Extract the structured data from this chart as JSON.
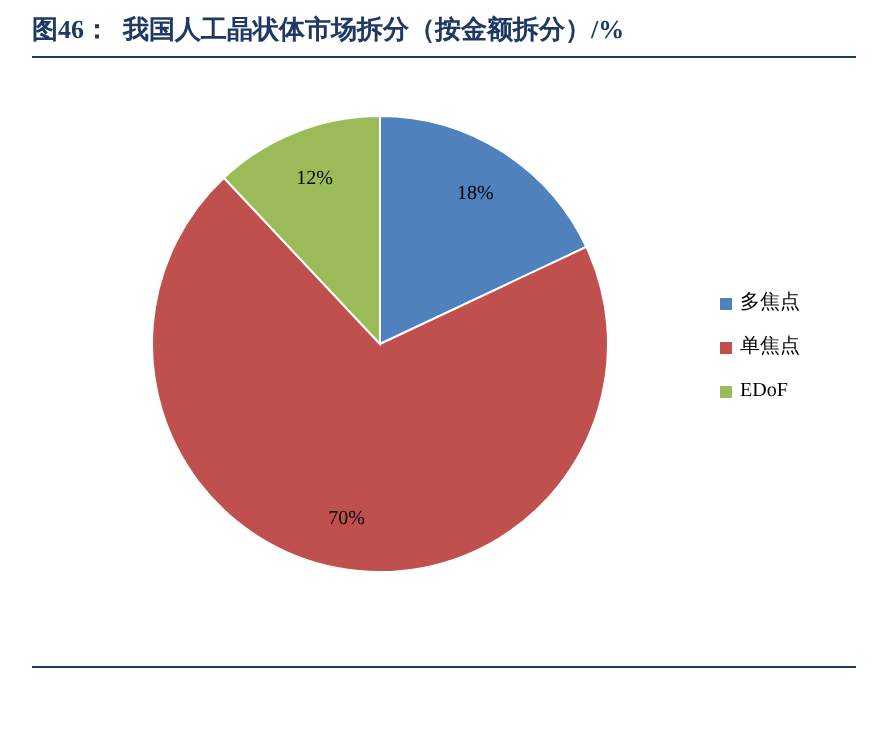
{
  "chart_data": {
    "type": "pie",
    "title": "图46：  我国人工晶状体市场拆分（按金额拆分）/%",
    "categories": [
      "多焦点",
      "单焦点",
      "EDoF"
    ],
    "values": [
      18,
      70,
      12
    ],
    "colors": [
      "#4f81bd",
      "#c0504d",
      "#9bbb59"
    ],
    "value_labels": [
      "18%",
      "70%",
      "12%"
    ],
    "legend": "right"
  }
}
